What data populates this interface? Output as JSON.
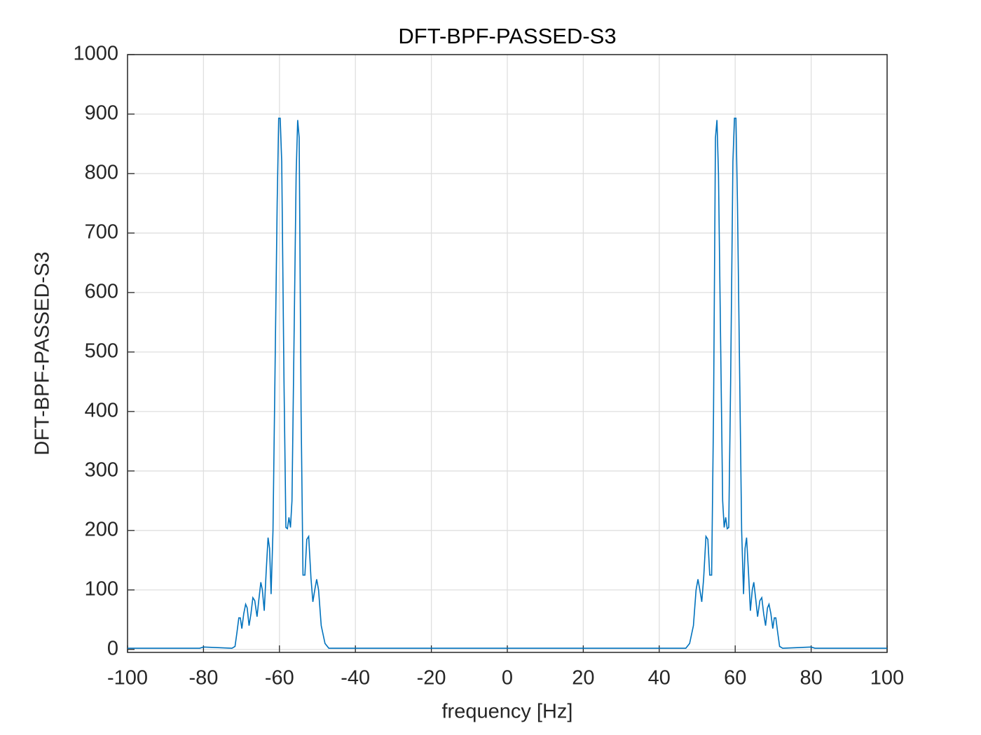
{
  "chart_data": {
    "type": "line",
    "title": "DFT-BPF-PASSED-S3",
    "xlabel": "frequency [Hz]",
    "ylabel": "DFT-BPF-PASSED-S3",
    "x": [
      -100,
      -81,
      -80,
      -72.5,
      -71.7,
      -71.2,
      -70.7,
      -70.3,
      -69.9,
      -69.4,
      -68.9,
      -68.5,
      -68,
      -67.5,
      -67,
      -66.5,
      -65.9,
      -65.4,
      -64.9,
      -64.5,
      -64,
      -63.5,
      -63,
      -62.6,
      -62.2,
      -61.7,
      -61.2,
      -60.6,
      -60.2,
      -59.8,
      -59.4,
      -58.8,
      -58.3,
      -57.9,
      -57.5,
      -57.1,
      -56.7,
      -56.2,
      -55.6,
      -55.2,
      -54.8,
      -54.3,
      -53.8,
      -53.3,
      -52.8,
      -52.3,
      -51.7,
      -51.2,
      -50.7,
      -50.2,
      -49.7,
      -49,
      -48,
      -47,
      47,
      48,
      49,
      49.7,
      50.2,
      50.7,
      51.2,
      51.7,
      52.3,
      52.8,
      53.3,
      53.8,
      54.3,
      54.8,
      55.2,
      55.6,
      56.2,
      56.7,
      57.1,
      57.5,
      57.9,
      58.3,
      58.8,
      59.4,
      59.8,
      60.2,
      60.6,
      61.2,
      61.7,
      62.2,
      62.6,
      63,
      63.5,
      64,
      64.5,
      64.9,
      65.4,
      65.9,
      66.5,
      67,
      67.5,
      68,
      68.5,
      68.9,
      69.4,
      69.9,
      70.3,
      70.7,
      71.2,
      71.7,
      72.5,
      80,
      81,
      100
    ],
    "series": [
      {
        "color": "#0072bd",
        "values": [
          2,
          2,
          4,
          2,
          5,
          28,
          53,
          53,
          35,
          60,
          76,
          70,
          40,
          60,
          87,
          82,
          55,
          85,
          113,
          100,
          65,
          130,
          188,
          170,
          93,
          200,
          450,
          750,
          893,
          893,
          820,
          450,
          205,
          203,
          222,
          205,
          250,
          500,
          800,
          890,
          860,
          400,
          125,
          125,
          185,
          190,
          120,
          80,
          100,
          118,
          100,
          40,
          10,
          2,
          2,
          10,
          40,
          100,
          118,
          100,
          80,
          120,
          190,
          185,
          125,
          125,
          400,
          860,
          890,
          800,
          500,
          250,
          205,
          222,
          203,
          205,
          450,
          820,
          893,
          893,
          750,
          450,
          200,
          93,
          170,
          188,
          130,
          65,
          100,
          113,
          85,
          55,
          82,
          87,
          60,
          40,
          70,
          76,
          60,
          35,
          53,
          53,
          28,
          5,
          2,
          4,
          2,
          2
        ]
      }
    ],
    "xlim": [
      -100,
      100
    ],
    "xticks": [
      -100,
      -80,
      -60,
      -40,
      -20,
      0,
      20,
      40,
      60,
      80,
      100
    ],
    "ylim": [
      -5,
      1000
    ],
    "yticks": [
      0,
      100,
      200,
      300,
      400,
      500,
      600,
      700,
      800,
      900,
      1000
    ],
    "grid": true
  }
}
